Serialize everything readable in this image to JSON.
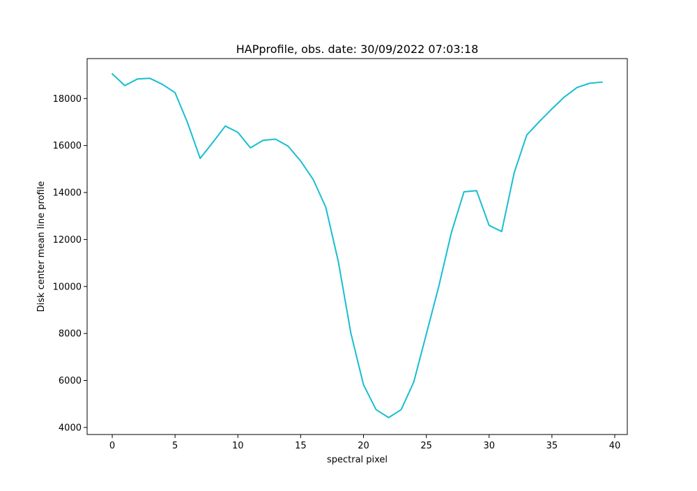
{
  "chart_data": {
    "type": "line",
    "title": "HAPprofile, obs. date: 30/09/2022 07:03:18",
    "xlabel": "spectral pixel",
    "ylabel": "Disk center mean line profile",
    "xlim": [
      -2,
      41
    ],
    "ylim": [
      3700,
      19700
    ],
    "xticks": [
      0,
      5,
      10,
      15,
      20,
      25,
      30,
      35,
      40
    ],
    "xtick_labels": [
      "0",
      "5",
      "10",
      "15",
      "20",
      "25",
      "30",
      "35",
      "40"
    ],
    "yticks": [
      4000,
      6000,
      8000,
      10000,
      12000,
      14000,
      16000,
      18000
    ],
    "ytick_labels": [
      "4000",
      "6000",
      "8000",
      "10000",
      "12000",
      "14000",
      "16000",
      "18000"
    ],
    "grid": false,
    "series": [
      {
        "color": "#17becf",
        "x": [
          0,
          1,
          2,
          3,
          4,
          5,
          6,
          7,
          8,
          9,
          10,
          11,
          12,
          13,
          14,
          15,
          16,
          17,
          18,
          19,
          20,
          21,
          22,
          23,
          24,
          25,
          26,
          27,
          28,
          29,
          30,
          31,
          32,
          33,
          34,
          35,
          36,
          37,
          38,
          39
        ],
        "y": [
          19050,
          18550,
          18830,
          18860,
          18600,
          18250,
          16960,
          15450,
          16130,
          16830,
          16560,
          15900,
          16220,
          16270,
          15970,
          15340,
          14550,
          13370,
          11050,
          8000,
          5820,
          4760,
          4420,
          4760,
          5930,
          7970,
          10020,
          12300,
          14030,
          14080,
          12600,
          12340,
          14850,
          16450,
          17020,
          17560,
          18070,
          18470,
          18650,
          18700
        ]
      }
    ]
  }
}
